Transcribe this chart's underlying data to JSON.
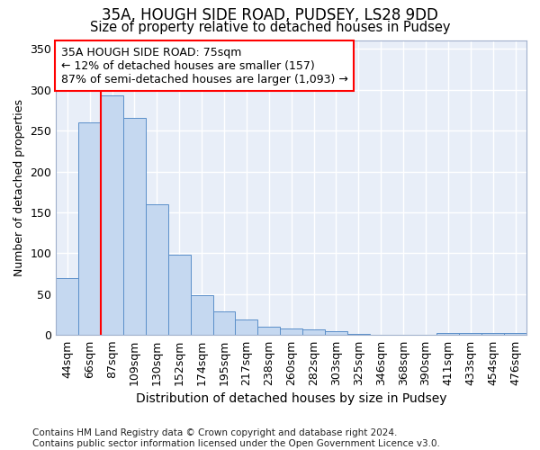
{
  "title1": "35A, HOUGH SIDE ROAD, PUDSEY, LS28 9DD",
  "title2": "Size of property relative to detached houses in Pudsey",
  "xlabel": "Distribution of detached houses by size in Pudsey",
  "ylabel": "Number of detached properties",
  "categories": [
    "44sqm",
    "66sqm",
    "87sqm",
    "109sqm",
    "130sqm",
    "152sqm",
    "174sqm",
    "195sqm",
    "217sqm",
    "238sqm",
    "260sqm",
    "282sqm",
    "303sqm",
    "325sqm",
    "346sqm",
    "368sqm",
    "390sqm",
    "411sqm",
    "433sqm",
    "454sqm",
    "476sqm"
  ],
  "values": [
    70,
    260,
    293,
    265,
    160,
    98,
    49,
    29,
    19,
    10,
    8,
    7,
    5,
    2,
    0,
    1,
    1,
    3,
    3,
    3,
    3
  ],
  "bar_color": "#c5d8f0",
  "bar_edge_color": "#5b8fc9",
  "bar_edge_width": 0.7,
  "annotation_line1": "35A HOUGH SIDE ROAD: 75sqm",
  "annotation_line2": "← 12% of detached houses are smaller (157)",
  "annotation_line3": "87% of semi-detached houses are larger (1,093) →",
  "red_line_x": 1.5,
  "ylim": [
    0,
    360
  ],
  "yticks": [
    0,
    50,
    100,
    150,
    200,
    250,
    300,
    350
  ],
  "background_color": "#e8eef8",
  "grid_color": "#ffffff",
  "spine_color": "#a0b0cc",
  "footer_line1": "Contains HM Land Registry data © Crown copyright and database right 2024.",
  "footer_line2": "Contains public sector information licensed under the Open Government Licence v3.0.",
  "title1_fontsize": 12,
  "title2_fontsize": 10.5,
  "xlabel_fontsize": 10,
  "ylabel_fontsize": 9,
  "tick_fontsize": 9,
  "annotation_fontsize": 9,
  "footer_fontsize": 7.5
}
